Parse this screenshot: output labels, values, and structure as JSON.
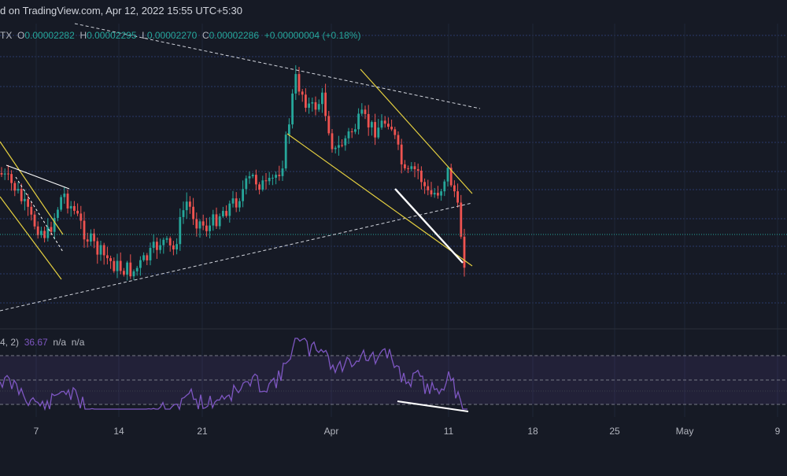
{
  "header": {
    "published": "d on TradingView.com, Apr 12, 2022 15:55 UTC+5:30"
  },
  "ohlc": {
    "symbol": "TX",
    "o_label": "O",
    "o": "0.00002282",
    "h_label": "H",
    "h": "0.00002295",
    "l_label": "L",
    "l": "0.00002270",
    "c_label": "C",
    "c": "0.00002286",
    "change": "+0.00000004 (+0.18%)"
  },
  "indicator": {
    "params": "4, 2)",
    "value": "36.67",
    "na1": "n/a",
    "na2": "n/a"
  },
  "colors": {
    "background": "#161a25",
    "up": "#26a69a",
    "down": "#ef5350",
    "rsi": "#7e57c2",
    "trendline_yellow": "#e5d040",
    "trendline_white": "#ffffff"
  },
  "chart_data": {
    "type": "candlestick",
    "x_tick_labels": [
      "7",
      "14",
      "21",
      "Apr",
      "11",
      "18",
      "25",
      "May",
      "9"
    ],
    "last_close": 2.286e-05,
    "indicator_bands": [
      30,
      50,
      70
    ],
    "indicator_last": 36.67
  }
}
